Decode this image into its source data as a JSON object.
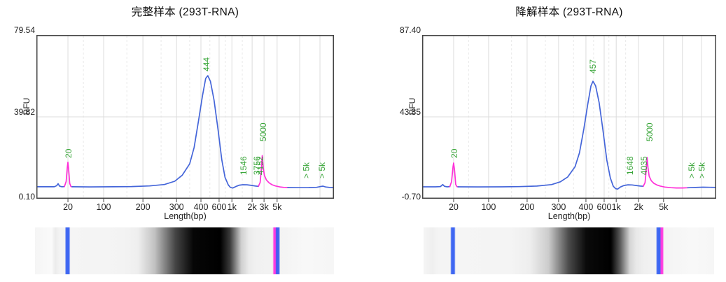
{
  "colors": {
    "trace_blue": "#4465d9",
    "marker_pink": "#ff30d8",
    "label_green": "#3aa63a",
    "grid": "#dcdcdc",
    "grid_dashed": "#e9e9e9",
    "frame": "#444444",
    "axis_text": "#222222",
    "gel_blue": "#3e66f2",
    "gel_pink": "#ff3ce0"
  },
  "chart_data": [
    {
      "type": "line",
      "title": "完整样本 (293T-RNA)",
      "y_axis": {
        "label": "RFU",
        "min": 0.1,
        "max": 79.54,
        "tick_labels": [
          "79.54",
          "39.82",
          "0.10"
        ]
      },
      "x_axis": {
        "label": "Length(bp)",
        "ticks": [
          {
            "label": "20",
            "f": 0.106
          },
          {
            "label": "100",
            "f": 0.226
          },
          {
            "label": "200",
            "f": 0.358
          },
          {
            "label": "300",
            "f": 0.471
          },
          {
            "label": "400",
            "f": 0.553
          },
          {
            "label": "600",
            "f": 0.614
          },
          {
            "label": "1k",
            "f": 0.657
          },
          {
            "label": "2k",
            "f": 0.725
          },
          {
            "label": "3k",
            "f": 0.765
          },
          {
            "label": "5k",
            "f": 0.809
          }
        ],
        "dashed_gridlines": [
          0.158,
          0.304,
          0.419,
          0.515,
          0.583,
          0.635,
          0.692
        ],
        "extra_gridlines": [
          0.885,
          0.953
        ]
      },
      "annotations": [
        {
          "text": "20",
          "f": 0.106,
          "yb": 0.752
        },
        {
          "text": "444",
          "f": 0.569,
          "yb": 0.222
        },
        {
          "text": "1546",
          "f": 0.694,
          "yb": 0.855
        },
        {
          "text": "3756",
          "f": 0.739,
          "yb": 0.855
        },
        {
          "text": "4152",
          "f": 0.751,
          "yb": 0.855
        },
        {
          "text": "5000",
          "f": 0.76,
          "yb": 0.65
        },
        {
          "text": "> 5k",
          "f": 0.905,
          "yb": 0.876
        },
        {
          "text": "> 5k",
          "f": 0.958,
          "yb": 0.876
        }
      ],
      "segments": [
        {
          "name": "baseline-start",
          "color_key": "trace_blue",
          "points": [
            [
              0.0,
              5.9
            ],
            [
              0.04,
              5.9
            ],
            [
              0.06,
              5.9
            ],
            [
              0.068,
              6.4
            ],
            [
              0.073,
              7.4
            ],
            [
              0.078,
              6.2
            ],
            [
              0.086,
              5.9
            ],
            [
              0.094,
              6.0
            ]
          ]
        },
        {
          "name": "lower-marker-20bp",
          "color_key": "marker_pink",
          "points": [
            [
              0.094,
              6.0
            ],
            [
              0.1,
              8.5
            ],
            [
              0.104,
              15.5
            ],
            [
              0.106,
              17.8
            ],
            [
              0.108,
              15.0
            ],
            [
              0.112,
              7.5
            ],
            [
              0.116,
              6.0
            ],
            [
              0.12,
              5.9
            ]
          ]
        },
        {
          "name": "sample-trace",
          "color_key": "trace_blue",
          "points": [
            [
              0.12,
              5.9
            ],
            [
              0.18,
              5.85
            ],
            [
              0.26,
              5.9
            ],
            [
              0.32,
              6.0
            ],
            [
              0.38,
              6.3
            ],
            [
              0.43,
              7.0
            ],
            [
              0.465,
              8.6
            ],
            [
              0.49,
              11.5
            ],
            [
              0.515,
              17.0
            ],
            [
              0.53,
              25.0
            ],
            [
              0.545,
              38.0
            ],
            [
              0.558,
              50.0
            ],
            [
              0.569,
              58.5
            ],
            [
              0.576,
              59.8
            ],
            [
              0.585,
              57.0
            ],
            [
              0.597,
              48.0
            ],
            [
              0.61,
              34.0
            ],
            [
              0.623,
              19.0
            ],
            [
              0.634,
              10.5
            ],
            [
              0.645,
              6.8
            ],
            [
              0.652,
              5.6
            ],
            [
              0.66,
              5.3
            ],
            [
              0.67,
              6.0
            ],
            [
              0.682,
              6.7
            ],
            [
              0.694,
              6.9
            ],
            [
              0.708,
              6.85
            ],
            [
              0.722,
              6.6
            ],
            [
              0.737,
              6.25
            ],
            [
              0.746,
              6.1
            ]
          ]
        },
        {
          "name": "upper-marker-5000bp",
          "color_key": "marker_pink",
          "points": [
            [
              0.746,
              6.1
            ],
            [
              0.752,
              8.0
            ],
            [
              0.756,
              14.5
            ],
            [
              0.759,
              21.0
            ],
            [
              0.762,
              15.5
            ],
            [
              0.766,
              11.5
            ],
            [
              0.773,
              9.2
            ],
            [
              0.782,
              7.8
            ],
            [
              0.792,
              6.9
            ],
            [
              0.803,
              6.3
            ],
            [
              0.818,
              5.85
            ],
            [
              0.832,
              5.6
            ],
            [
              0.845,
              5.5
            ]
          ]
        },
        {
          "name": "baseline-end",
          "color_key": "trace_blue",
          "points": [
            [
              0.845,
              5.5
            ],
            [
              0.88,
              5.45
            ],
            [
              0.915,
              5.5
            ],
            [
              0.942,
              5.65
            ],
            [
              0.955,
              6.0
            ],
            [
              0.963,
              6.2
            ],
            [
              0.972,
              5.8
            ],
            [
              0.985,
              5.55
            ],
            [
              1.0,
              5.5
            ]
          ]
        }
      ],
      "gel": {
        "stops": [
          [
            0.0,
            "#f5f5f5"
          ],
          [
            0.055,
            "#fafafa"
          ],
          [
            0.068,
            "#ececec"
          ],
          [
            0.082,
            "#f3f3f3"
          ],
          [
            0.1,
            "#f3f3f3"
          ],
          [
            0.104,
            "#3e66f2"
          ],
          [
            0.114,
            "#3e66f2"
          ],
          [
            0.118,
            "#f5f5f5"
          ],
          [
            0.3,
            "#f3f3f3"
          ],
          [
            0.345,
            "#eeeeee"
          ],
          [
            0.4,
            "#c2c2c2"
          ],
          [
            0.47,
            "#444444"
          ],
          [
            0.53,
            "#060606"
          ],
          [
            0.62,
            "#000000"
          ],
          [
            0.652,
            "#3a3a3a"
          ],
          [
            0.69,
            "#cfcfcf"
          ],
          [
            0.715,
            "#ebebeb"
          ],
          [
            0.74,
            "#f1f1f1"
          ],
          [
            0.795,
            "#f2f2f2"
          ],
          [
            0.799,
            "#ff3ce0"
          ],
          [
            0.804,
            "#ff3ce0"
          ],
          [
            0.807,
            "#4459ef"
          ],
          [
            0.816,
            "#3e66f2"
          ],
          [
            0.82,
            "#f3f3f3"
          ],
          [
            0.9,
            "#f8f8f8"
          ],
          [
            1.0,
            "#f6f6f6"
          ]
        ]
      }
    },
    {
      "type": "line",
      "title": "降解样本 (293T-RNA)",
      "y_axis": {
        "label": "RFU",
        "min": -0.7,
        "max": 87.4,
        "tick_labels": [
          "87.40",
          "43.35",
          "-0.70"
        ]
      },
      "x_axis": {
        "label": "Length(bp)",
        "ticks": [
          {
            "label": "20",
            "f": 0.107
          },
          {
            "label": "100",
            "f": 0.226
          },
          {
            "label": "200",
            "f": 0.357
          },
          {
            "label": "300",
            "f": 0.464
          },
          {
            "label": "400",
            "f": 0.557
          },
          {
            "label": "600",
            "f": 0.619
          },
          {
            "label": "1k",
            "f": 0.66
          },
          {
            "label": "2k",
            "f": 0.736
          },
          {
            "label": "5k",
            "f": 0.821
          }
        ],
        "dashed_gridlines": [
          0.158,
          0.304,
          0.419,
          0.515,
          0.583,
          0.635,
          0.692
        ],
        "extra_gridlines": [
          0.885,
          0.95
        ]
      },
      "annotations": [
        {
          "text": "20",
          "f": 0.107,
          "yb": 0.752
        },
        {
          "text": "457",
          "f": 0.578,
          "yb": 0.235
        },
        {
          "text": "1648",
          "f": 0.705,
          "yb": 0.855
        },
        {
          "text": "4035",
          "f": 0.752,
          "yb": 0.855
        },
        {
          "text": "5000",
          "f": 0.772,
          "yb": 0.65
        },
        {
          "text": "> 5k",
          "f": 0.914,
          "yb": 0.876
        },
        {
          "text": "> 5k",
          "f": 0.949,
          "yb": 0.876
        }
      ],
      "segments": [
        {
          "name": "baseline-start",
          "color_key": "trace_blue",
          "points": [
            [
              0.0,
              5.7
            ],
            [
              0.045,
              5.7
            ],
            [
              0.062,
              5.8
            ],
            [
              0.07,
              6.9
            ],
            [
              0.076,
              6.0
            ],
            [
              0.085,
              5.7
            ],
            [
              0.094,
              5.8
            ]
          ]
        },
        {
          "name": "lower-marker-20bp",
          "color_key": "marker_pink",
          "points": [
            [
              0.094,
              5.8
            ],
            [
              0.1,
              8.5
            ],
            [
              0.105,
              16.5
            ],
            [
              0.107,
              18.5
            ],
            [
              0.11,
              15.0
            ],
            [
              0.114,
              7.0
            ],
            [
              0.118,
              5.8
            ],
            [
              0.122,
              5.7
            ]
          ]
        },
        {
          "name": "sample-trace",
          "color_key": "trace_blue",
          "points": [
            [
              0.122,
              5.7
            ],
            [
              0.19,
              5.65
            ],
            [
              0.27,
              5.7
            ],
            [
              0.33,
              5.8
            ],
            [
              0.39,
              6.1
            ],
            [
              0.44,
              6.9
            ],
            [
              0.47,
              8.4
            ],
            [
              0.495,
              11.0
            ],
            [
              0.52,
              16.5
            ],
            [
              0.535,
              24.0
            ],
            [
              0.55,
              37.0
            ],
            [
              0.563,
              50.0
            ],
            [
              0.574,
              60.0
            ],
            [
              0.581,
              62.5
            ],
            [
              0.59,
              60.0
            ],
            [
              0.602,
              51.0
            ],
            [
              0.615,
              36.0
            ],
            [
              0.628,
              20.0
            ],
            [
              0.64,
              10.5
            ],
            [
              0.65,
              6.0
            ],
            [
              0.658,
              4.7
            ],
            [
              0.665,
              4.5
            ],
            [
              0.674,
              5.6
            ],
            [
              0.686,
              6.4
            ],
            [
              0.7,
              6.8
            ],
            [
              0.714,
              6.7
            ],
            [
              0.728,
              6.4
            ],
            [
              0.742,
              6.1
            ],
            [
              0.752,
              6.0
            ]
          ]
        },
        {
          "name": "upper-marker-5000bp",
          "color_key": "marker_pink",
          "points": [
            [
              0.752,
              6.0
            ],
            [
              0.758,
              8.0
            ],
            [
              0.762,
              14.5
            ],
            [
              0.765,
              21.5
            ],
            [
              0.768,
              16.0
            ],
            [
              0.772,
              11.5
            ],
            [
              0.779,
              9.0
            ],
            [
              0.788,
              7.6
            ],
            [
              0.798,
              6.7
            ],
            [
              0.81,
              6.1
            ],
            [
              0.825,
              5.6
            ],
            [
              0.845,
              5.25
            ],
            [
              0.865,
              5.1
            ],
            [
              0.885,
              5.1
            ],
            [
              0.903,
              5.2
            ]
          ]
        },
        {
          "name": "baseline-end",
          "color_key": "trace_blue",
          "points": [
            [
              0.903,
              5.2
            ],
            [
              0.93,
              5.35
            ],
            [
              0.955,
              5.5
            ],
            [
              0.98,
              5.45
            ],
            [
              1.0,
              5.4
            ]
          ]
        }
      ],
      "gel": {
        "stops": [
          [
            0.0,
            "#f5f5f5"
          ],
          [
            0.03,
            "#efefef"
          ],
          [
            0.05,
            "#f4f4f4"
          ],
          [
            0.092,
            "#f4f4f4"
          ],
          [
            0.096,
            "#3e66f2"
          ],
          [
            0.106,
            "#3e66f2"
          ],
          [
            0.11,
            "#f5f5f5"
          ],
          [
            0.3,
            "#f4f4f4"
          ],
          [
            0.366,
            "#eeeeee"
          ],
          [
            0.43,
            "#cccccc"
          ],
          [
            0.5,
            "#4a4a4a"
          ],
          [
            0.56,
            "#0a0a0a"
          ],
          [
            0.645,
            "#000000"
          ],
          [
            0.675,
            "#555555"
          ],
          [
            0.71,
            "#d5d5d5"
          ],
          [
            0.733,
            "#e9e9e9"
          ],
          [
            0.76,
            "#f0f0f0"
          ],
          [
            0.8,
            "#f2f2f2"
          ],
          [
            0.804,
            "#3e66f2"
          ],
          [
            0.814,
            "#3e66f2"
          ],
          [
            0.817,
            "#ff3ce0"
          ],
          [
            0.823,
            "#ff3ce0"
          ],
          [
            0.827,
            "#f4f4f4"
          ],
          [
            0.92,
            "#f8f8f8"
          ],
          [
            1.0,
            "#f6f6f6"
          ]
        ]
      }
    }
  ]
}
